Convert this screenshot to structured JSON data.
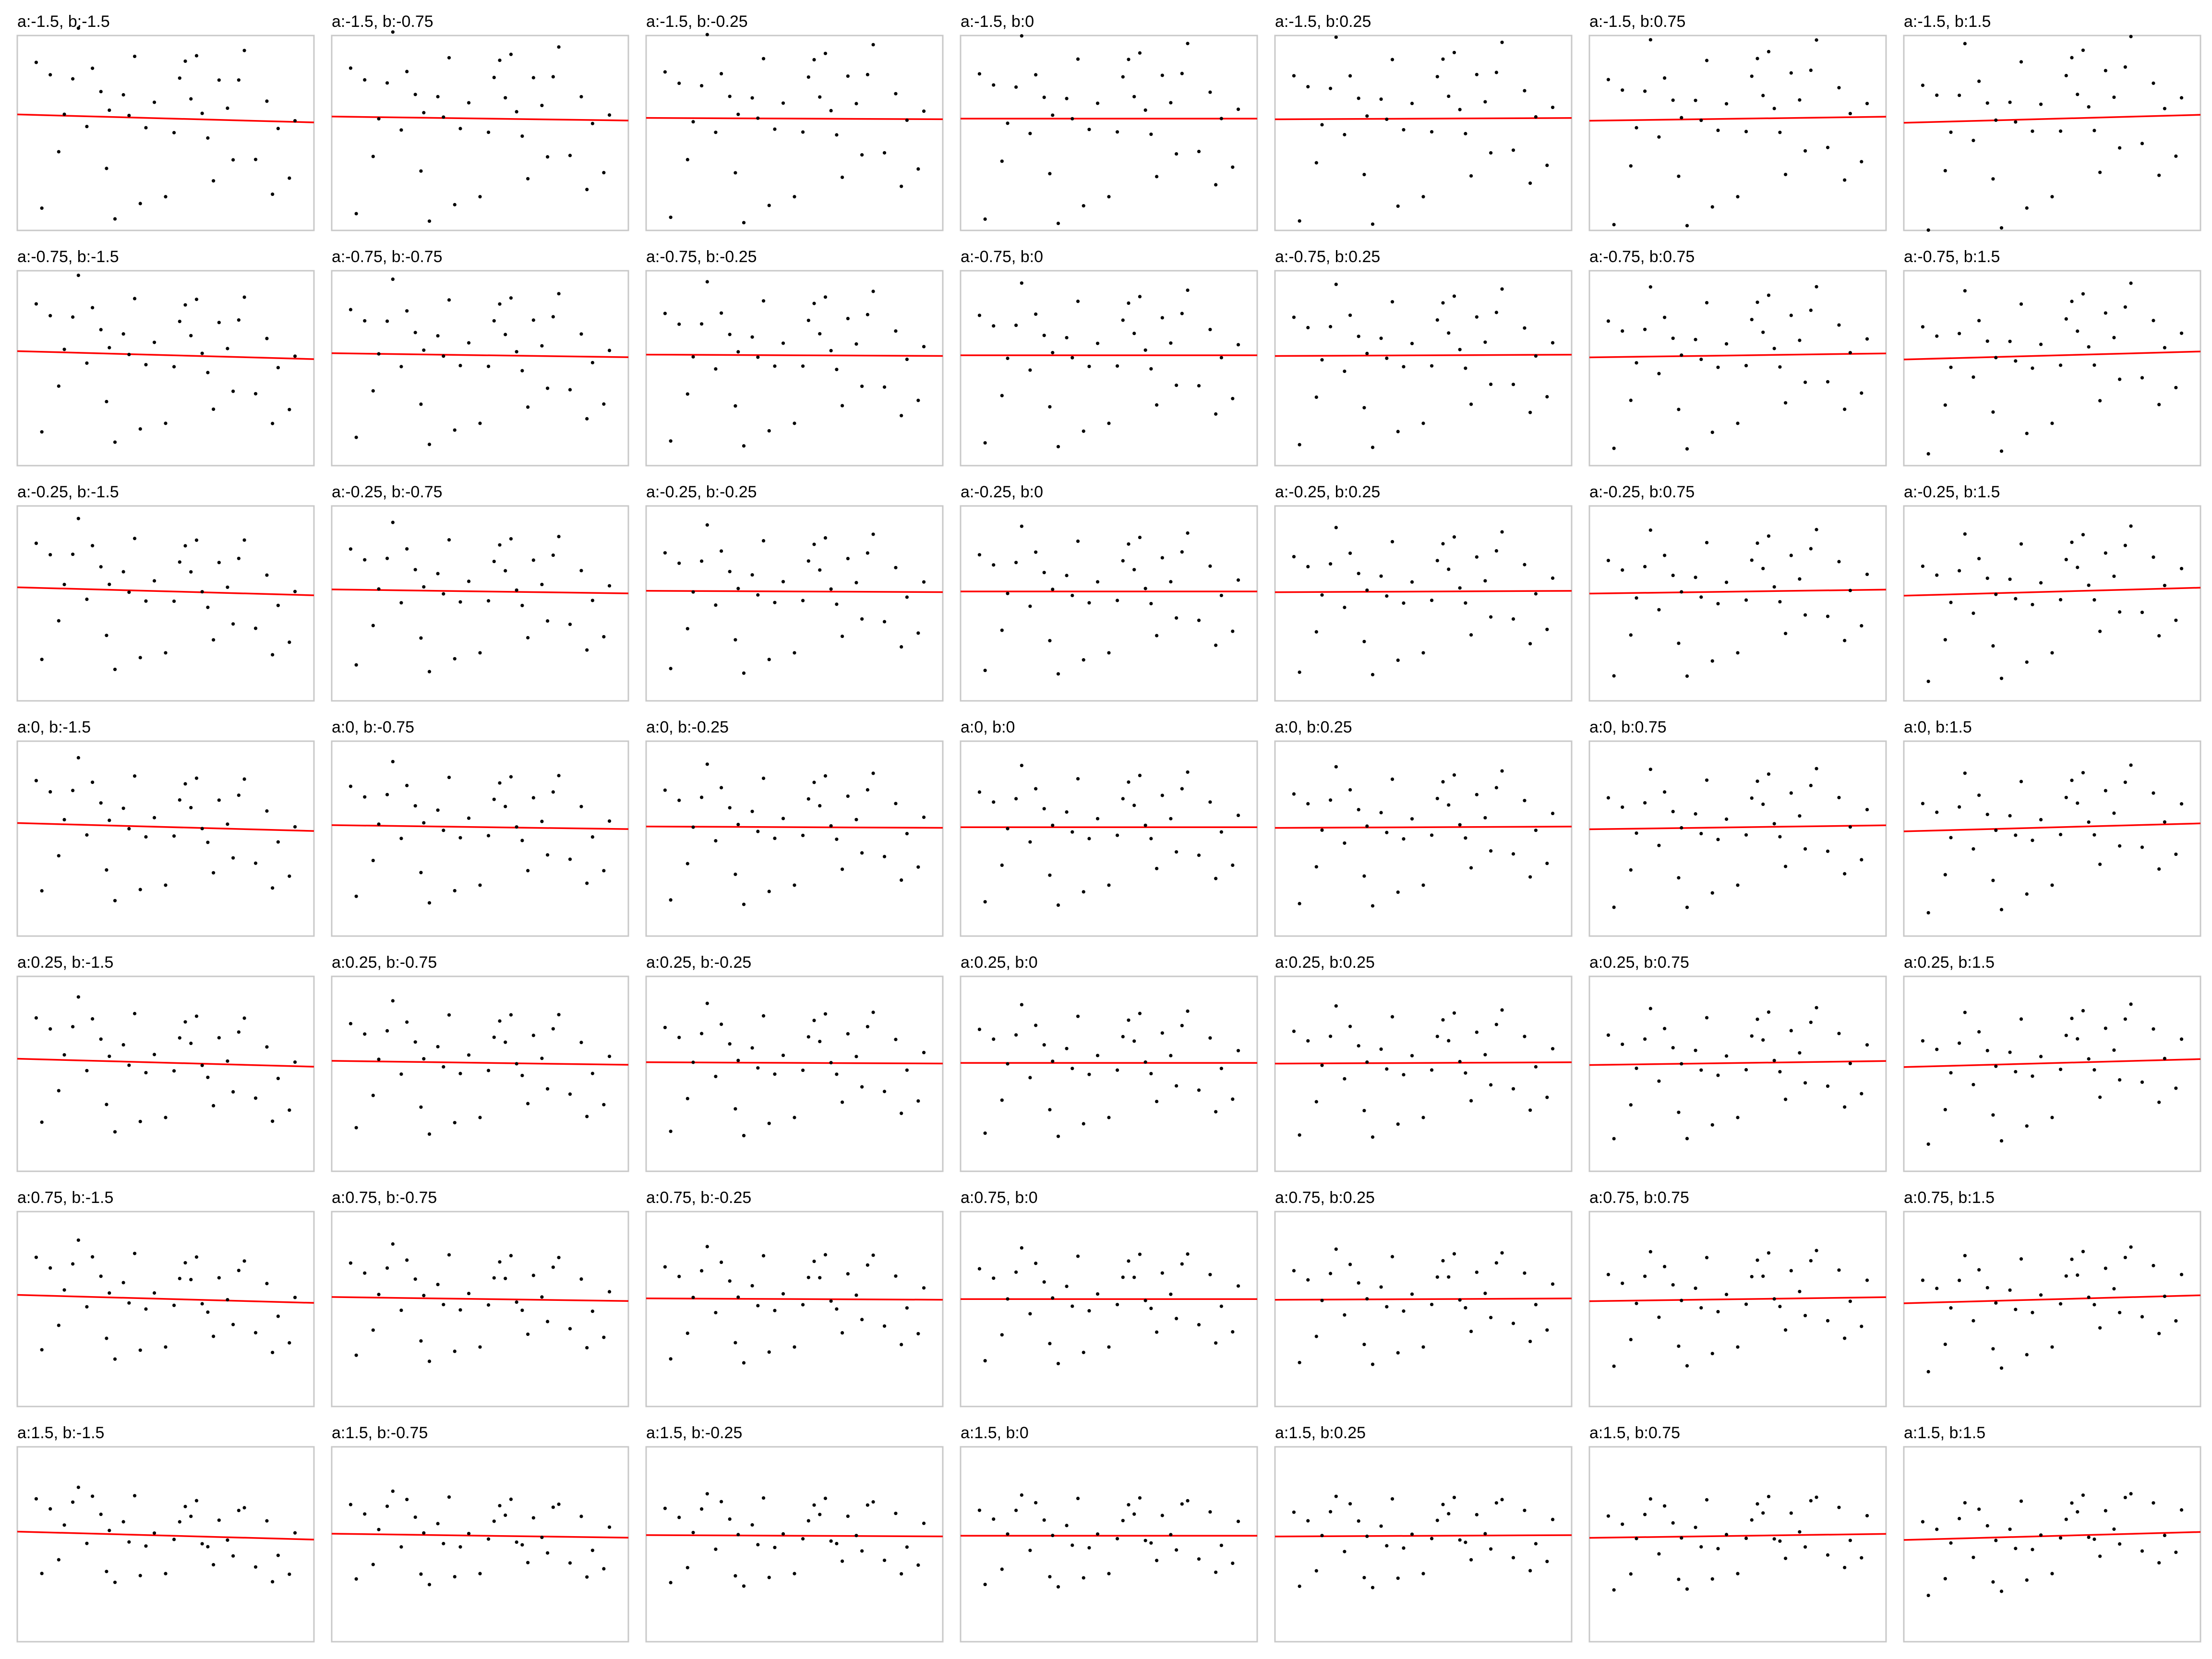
{
  "panel_titles": [
    [
      "a:-1.5, b:-1.5",
      "a:-1.5, b:-0.75",
      "a:-1.5, b:-0.25",
      "a:-1.5, b:0",
      "a:-1.5, b:0.25",
      "a:-1.5, b:0.75",
      "a:-1.5, b:1.5"
    ],
    [
      "a:-0.75, b:-1.5",
      "a:-0.75, b:-0.75",
      "a:-0.75, b:-0.25",
      "a:-0.75, b:0",
      "a:-0.75, b:0.25",
      "a:-0.75, b:0.75",
      "a:-0.75, b:1.5"
    ],
    [
      "a:-0.25, b:-1.5",
      "a:-0.25, b:-0.75",
      "a:-0.25, b:-0.25",
      "a:-0.25, b:0",
      "a:-0.25, b:0.25",
      "a:-0.25, b:0.75",
      "a:-0.25, b:1.5"
    ],
    [
      "a:0, b:-1.5",
      "a:0, b:-0.75",
      "a:0, b:-0.25",
      "a:0, b:0",
      "a:0, b:0.25",
      "a:0, b:0.75",
      "a:0, b:1.5"
    ],
    [
      "a:0.25, b:-1.5",
      "a:0.25, b:-0.75",
      "a:0.25, b:-0.25",
      "a:0.25, b:0",
      "a:0.25, b:0.25",
      "a:0.25, b:0.75",
      "a:0.25, b:1.5"
    ],
    [
      "a:0.75, b:-1.5",
      "a:0.75, b:-0.75",
      "a:0.75, b:-0.25",
      "a:0.75, b:0",
      "a:0.75, b:0.25",
      "a:0.75, b:0.75",
      "a:0.75, b:1.5"
    ],
    [
      "a:1.5, b:-1.5",
      "a:1.5, b:-0.75",
      "a:1.5, b:-0.25",
      "a:1.5, b:0",
      "a:1.5, b:0.25",
      "a:1.5, b:0.75",
      "a:1.5, b:1.5"
    ]
  ],
  "chart_data": {
    "type": "scatter",
    "layout": "small-multiples grid",
    "rows_param": "a",
    "cols_param": "b",
    "a_values": [
      -1.5,
      -0.75,
      -0.25,
      0,
      0.25,
      0.75,
      1.5
    ],
    "b_values": [
      -1.5,
      -0.75,
      -0.25,
      0,
      0.25,
      0.75,
      1.5
    ],
    "axes_visible": false,
    "grid": false,
    "fit_line_color": "#ff0000",
    "point_color": "#000000",
    "panel_border_color": "#c8c8c8",
    "base_points": {
      "x": [
        0.04,
        0.06,
        0.09,
        0.12,
        0.14,
        0.17,
        0.19,
        0.22,
        0.24,
        0.27,
        0.29,
        0.3,
        0.32,
        0.35,
        0.37,
        0.39,
        0.41,
        0.43,
        0.46,
        0.5,
        0.53,
        0.55,
        0.57,
        0.59,
        0.61,
        0.63,
        0.65,
        0.67,
        0.69,
        0.72,
        0.74,
        0.76,
        0.78,
        0.82,
        0.86,
        0.88,
        0.9,
        0.94,
        0.96
      ],
      "y": [
        0.7,
        -0.95,
        0.55,
        -0.4,
        0.15,
        0.6,
        1.1,
        -0.05,
        0.75,
        0.45,
        -0.55,
        0.2,
        -1.0,
        0.4,
        0.1,
        0.9,
        -0.8,
        0.0,
        0.3,
        -0.7,
        0.05,
        0.6,
        0.85,
        0.5,
        0.95,
        0.2,
        0.0,
        -0.45,
        0.65,
        0.3,
        -0.2,
        0.75,
        1.0,
        -0.25,
        0.55,
        -0.6,
        0.1,
        -0.4,
        0.35
      ]
    },
    "fit_line": "horizontal line at mean y, slightly tilted by b"
  }
}
